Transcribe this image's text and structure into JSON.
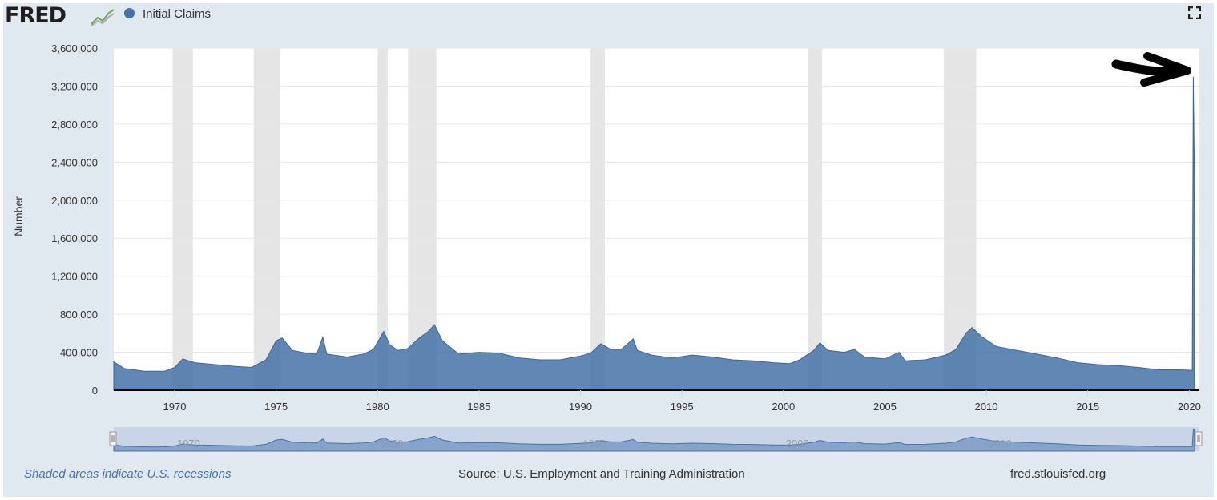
{
  "header": {
    "logo_text": "FRED",
    "logo_mark_icon": "fred-line-chart-icon",
    "legend_label": "Initial Claims",
    "legend_color": "#4572a7",
    "fullscreen_icon": "fullscreen-icon"
  },
  "chart_data": {
    "type": "area",
    "title": "",
    "xlabel": "",
    "ylabel": "Number",
    "xlim": [
      1967,
      2020.5
    ],
    "ylim": [
      0,
      3600000
    ],
    "y_ticks": [
      "0",
      "400,000",
      "800,000",
      "1,200,000",
      "1,600,000",
      "2,000,000",
      "2,400,000",
      "2,800,000",
      "3,200,000",
      "3,600,000"
    ],
    "x_ticks": [
      "1970",
      "1975",
      "1980",
      "1985",
      "1990",
      "1995",
      "2000",
      "2005",
      "2010",
      "2015",
      "2020"
    ],
    "grid": true,
    "series_color": "#4572a7",
    "series": [
      {
        "name": "Initial Claims",
        "points": [
          [
            1967.0,
            300000
          ],
          [
            1967.5,
            230000
          ],
          [
            1968.5,
            200000
          ],
          [
            1969.5,
            200000
          ],
          [
            1970.0,
            240000
          ],
          [
            1970.4,
            330000
          ],
          [
            1971.0,
            290000
          ],
          [
            1972.0,
            270000
          ],
          [
            1973.0,
            250000
          ],
          [
            1973.8,
            240000
          ],
          [
            1974.5,
            320000
          ],
          [
            1975.0,
            520000
          ],
          [
            1975.3,
            550000
          ],
          [
            1975.8,
            420000
          ],
          [
            1976.5,
            390000
          ],
          [
            1977.0,
            380000
          ],
          [
            1977.3,
            560000
          ],
          [
            1977.5,
            380000
          ],
          [
            1978.5,
            350000
          ],
          [
            1979.3,
            380000
          ],
          [
            1979.8,
            430000
          ],
          [
            1980.3,
            620000
          ],
          [
            1980.6,
            480000
          ],
          [
            1981.0,
            420000
          ],
          [
            1981.5,
            440000
          ],
          [
            1982.0,
            540000
          ],
          [
            1982.5,
            620000
          ],
          [
            1982.8,
            690000
          ],
          [
            1983.2,
            520000
          ],
          [
            1984.0,
            380000
          ],
          [
            1985.0,
            400000
          ],
          [
            1986.0,
            390000
          ],
          [
            1987.0,
            340000
          ],
          [
            1988.0,
            320000
          ],
          [
            1989.0,
            320000
          ],
          [
            1990.0,
            360000
          ],
          [
            1990.5,
            390000
          ],
          [
            1991.0,
            490000
          ],
          [
            1991.5,
            430000
          ],
          [
            1992.0,
            430000
          ],
          [
            1992.6,
            540000
          ],
          [
            1992.8,
            420000
          ],
          [
            1993.5,
            370000
          ],
          [
            1994.5,
            340000
          ],
          [
            1995.5,
            370000
          ],
          [
            1996.5,
            350000
          ],
          [
            1997.5,
            320000
          ],
          [
            1998.5,
            310000
          ],
          [
            1999.5,
            290000
          ],
          [
            2000.3,
            280000
          ],
          [
            2000.8,
            320000
          ],
          [
            2001.5,
            420000
          ],
          [
            2001.8,
            500000
          ],
          [
            2002.2,
            420000
          ],
          [
            2003.0,
            400000
          ],
          [
            2003.5,
            430000
          ],
          [
            2004.0,
            350000
          ],
          [
            2005.0,
            330000
          ],
          [
            2005.7,
            400000
          ],
          [
            2006.0,
            310000
          ],
          [
            2007.0,
            320000
          ],
          [
            2008.0,
            370000
          ],
          [
            2008.5,
            430000
          ],
          [
            2009.0,
            600000
          ],
          [
            2009.3,
            660000
          ],
          [
            2009.8,
            560000
          ],
          [
            2010.5,
            460000
          ],
          [
            2011.5,
            420000
          ],
          [
            2012.5,
            380000
          ],
          [
            2013.5,
            340000
          ],
          [
            2014.5,
            290000
          ],
          [
            2015.5,
            270000
          ],
          [
            2016.5,
            260000
          ],
          [
            2017.5,
            240000
          ],
          [
            2018.5,
            215000
          ],
          [
            2019.5,
            215000
          ],
          [
            2020.15,
            210000
          ],
          [
            2020.2,
            3300000
          ],
          [
            2020.25,
            2300000
          ],
          [
            2020.26,
            0
          ]
        ]
      }
    ],
    "recessions": [
      [
        1969.9,
        1970.9
      ],
      [
        1973.9,
        1975.2
      ],
      [
        1980.0,
        1980.5
      ],
      [
        1981.5,
        1982.9
      ],
      [
        1990.5,
        1991.2
      ],
      [
        2001.2,
        2001.9
      ],
      [
        2007.9,
        2009.5
      ]
    ],
    "recession_color": "#e5e5e5",
    "navigator_ticks": [
      "1970",
      "1980",
      "1990",
      "2000",
      "2010"
    ]
  },
  "footer": {
    "recession_note": "Shaded areas indicate U.S. recessions",
    "source": "Source: U.S. Employment and Training Administration",
    "site": "fred.stlouisfed.org"
  }
}
